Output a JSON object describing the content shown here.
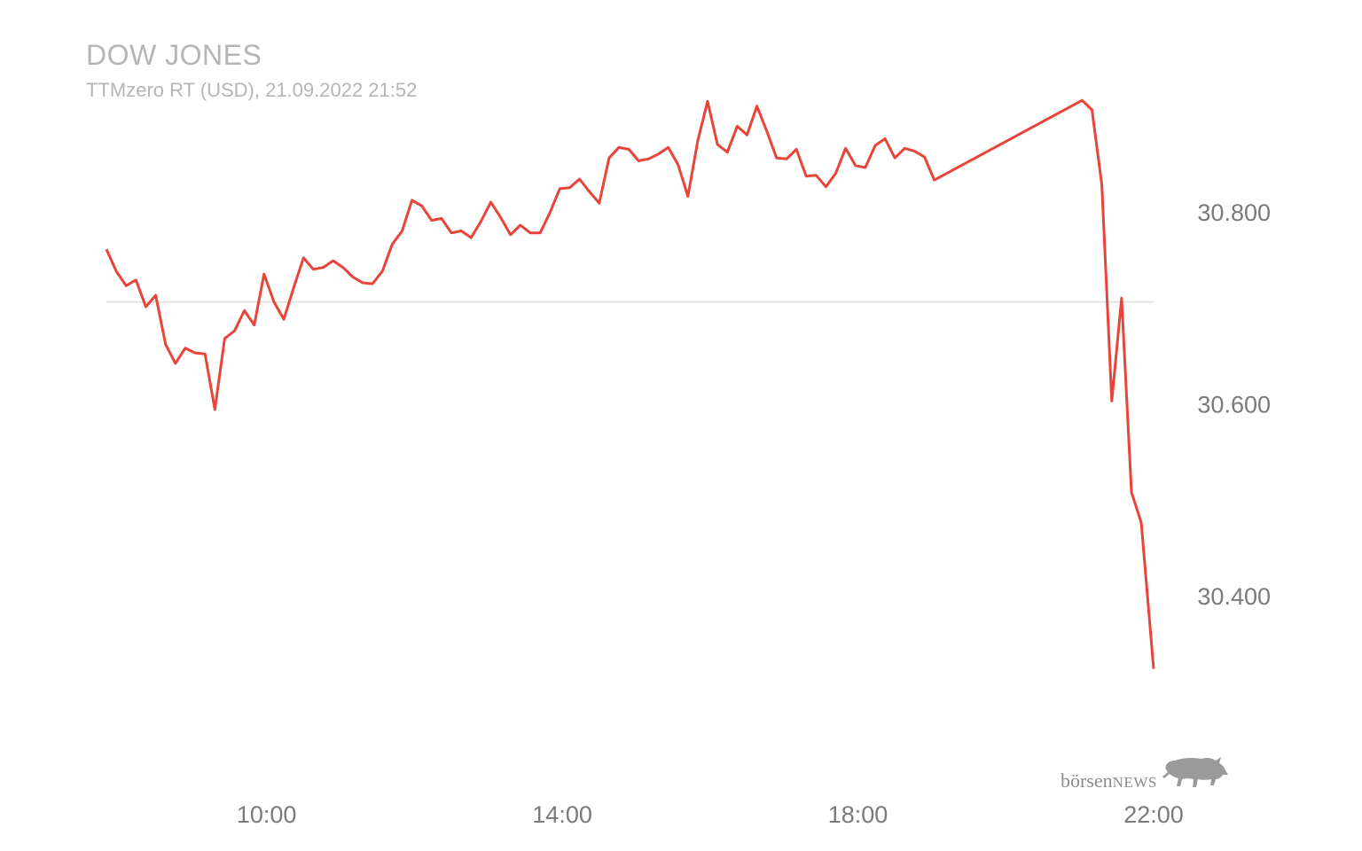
{
  "header": {
    "title": "DOW JONES",
    "subtitle": "TTMzero RT (USD), 21.09.2022 21:52"
  },
  "branding": {
    "logo_text_lower": "börsen",
    "logo_text_upper": "NEWS",
    "logo_icon": "bull-icon"
  },
  "colors": {
    "line": "#e8443a",
    "reference_line": "#dddddd",
    "tick_text": "#7a7a7a",
    "title_text": "#b5b5b5"
  },
  "chart_data": {
    "type": "line",
    "title": "DOW JONES",
    "subtitle": "TTMzero RT (USD), 21.09.2022 21:52",
    "xlabel": "",
    "ylabel": "",
    "x_ticks": [
      "10:00",
      "14:00",
      "18:00",
      "22:00"
    ],
    "y_ticks": [
      "30.400",
      "30.600",
      "30.800"
    ],
    "xlim": [
      "07:50",
      "22:00"
    ],
    "ylim": [
      30270,
      30930
    ],
    "reference_line": {
      "value": 30706
    },
    "grid": false,
    "legend": "none",
    "series": [
      {
        "values": [
          [
            "07:50",
            30761
          ],
          [
            "07:58",
            30738
          ],
          [
            "08:06",
            30723
          ],
          [
            "08:14",
            30729
          ],
          [
            "08:22",
            30701
          ],
          [
            "08:30",
            30713
          ],
          [
            "08:38",
            30662
          ],
          [
            "08:46",
            30642
          ],
          [
            "08:54",
            30658
          ],
          [
            "09:02",
            30653
          ],
          [
            "09:10",
            30652
          ],
          [
            "09:18",
            30594
          ],
          [
            "09:26",
            30668
          ],
          [
            "09:34",
            30676
          ],
          [
            "09:42",
            30697
          ],
          [
            "09:50",
            30682
          ],
          [
            "09:58",
            30735
          ],
          [
            "10:06",
            30706
          ],
          [
            "10:14",
            30688
          ],
          [
            "10:22",
            30721
          ],
          [
            "10:30",
            30752
          ],
          [
            "10:38",
            30740
          ],
          [
            "10:46",
            30742
          ],
          [
            "10:54",
            30749
          ],
          [
            "11:02",
            30742
          ],
          [
            "11:10",
            30732
          ],
          [
            "11:18",
            30726
          ],
          [
            "11:26",
            30725
          ],
          [
            "11:34",
            30738
          ],
          [
            "11:42",
            30766
          ],
          [
            "11:50",
            30780
          ],
          [
            "11:58",
            30812
          ],
          [
            "12:06",
            30806
          ],
          [
            "12:14",
            30791
          ],
          [
            "12:22",
            30793
          ],
          [
            "12:30",
            30778
          ],
          [
            "12:38",
            30780
          ],
          [
            "12:46",
            30773
          ],
          [
            "12:54",
            30790
          ],
          [
            "13:02",
            30810
          ],
          [
            "13:10",
            30794
          ],
          [
            "13:18",
            30776
          ],
          [
            "13:26",
            30786
          ],
          [
            "13:34",
            30778
          ],
          [
            "13:42",
            30778
          ],
          [
            "13:50",
            30799
          ],
          [
            "13:58",
            30824
          ],
          [
            "14:06",
            30825
          ],
          [
            "14:14",
            30834
          ],
          [
            "14:22",
            30821
          ],
          [
            "14:30",
            30809
          ],
          [
            "14:38",
            30856
          ],
          [
            "14:46",
            30867
          ],
          [
            "14:54",
            30865
          ],
          [
            "15:02",
            30853
          ],
          [
            "15:10",
            30855
          ],
          [
            "15:18",
            30860
          ],
          [
            "15:26",
            30867
          ],
          [
            "15:34",
            30849
          ],
          [
            "15:42",
            30816
          ],
          [
            "15:50",
            30874
          ],
          [
            "15:58",
            30915
          ],
          [
            "16:06",
            30870
          ],
          [
            "16:14",
            30862
          ],
          [
            "16:22",
            30889
          ],
          [
            "16:30",
            30880
          ],
          [
            "16:38",
            30910
          ],
          [
            "16:46",
            30884
          ],
          [
            "16:54",
            30856
          ],
          [
            "17:02",
            30855
          ],
          [
            "17:10",
            30865
          ],
          [
            "17:18",
            30837
          ],
          [
            "17:26",
            30838
          ],
          [
            "17:34",
            30826
          ],
          [
            "17:42",
            30840
          ],
          [
            "17:50",
            30866
          ],
          [
            "17:58",
            30848
          ],
          [
            "18:06",
            30846
          ],
          [
            "18:14",
            30869
          ],
          [
            "18:22",
            30876
          ],
          [
            "18:30",
            30856
          ],
          [
            "18:38",
            30866
          ],
          [
            "18:46",
            30863
          ],
          [
            "18:54",
            30857
          ],
          [
            "19:02",
            30833
          ],
          [
            "21:02",
            30916
          ],
          [
            "21:10",
            30906
          ],
          [
            "21:18",
            30828
          ],
          [
            "21:26",
            30603
          ],
          [
            "21:34",
            30710
          ],
          [
            "21:42",
            30508
          ],
          [
            "21:50",
            30476
          ],
          [
            "22:00",
            30324
          ]
        ]
      }
    ]
  }
}
